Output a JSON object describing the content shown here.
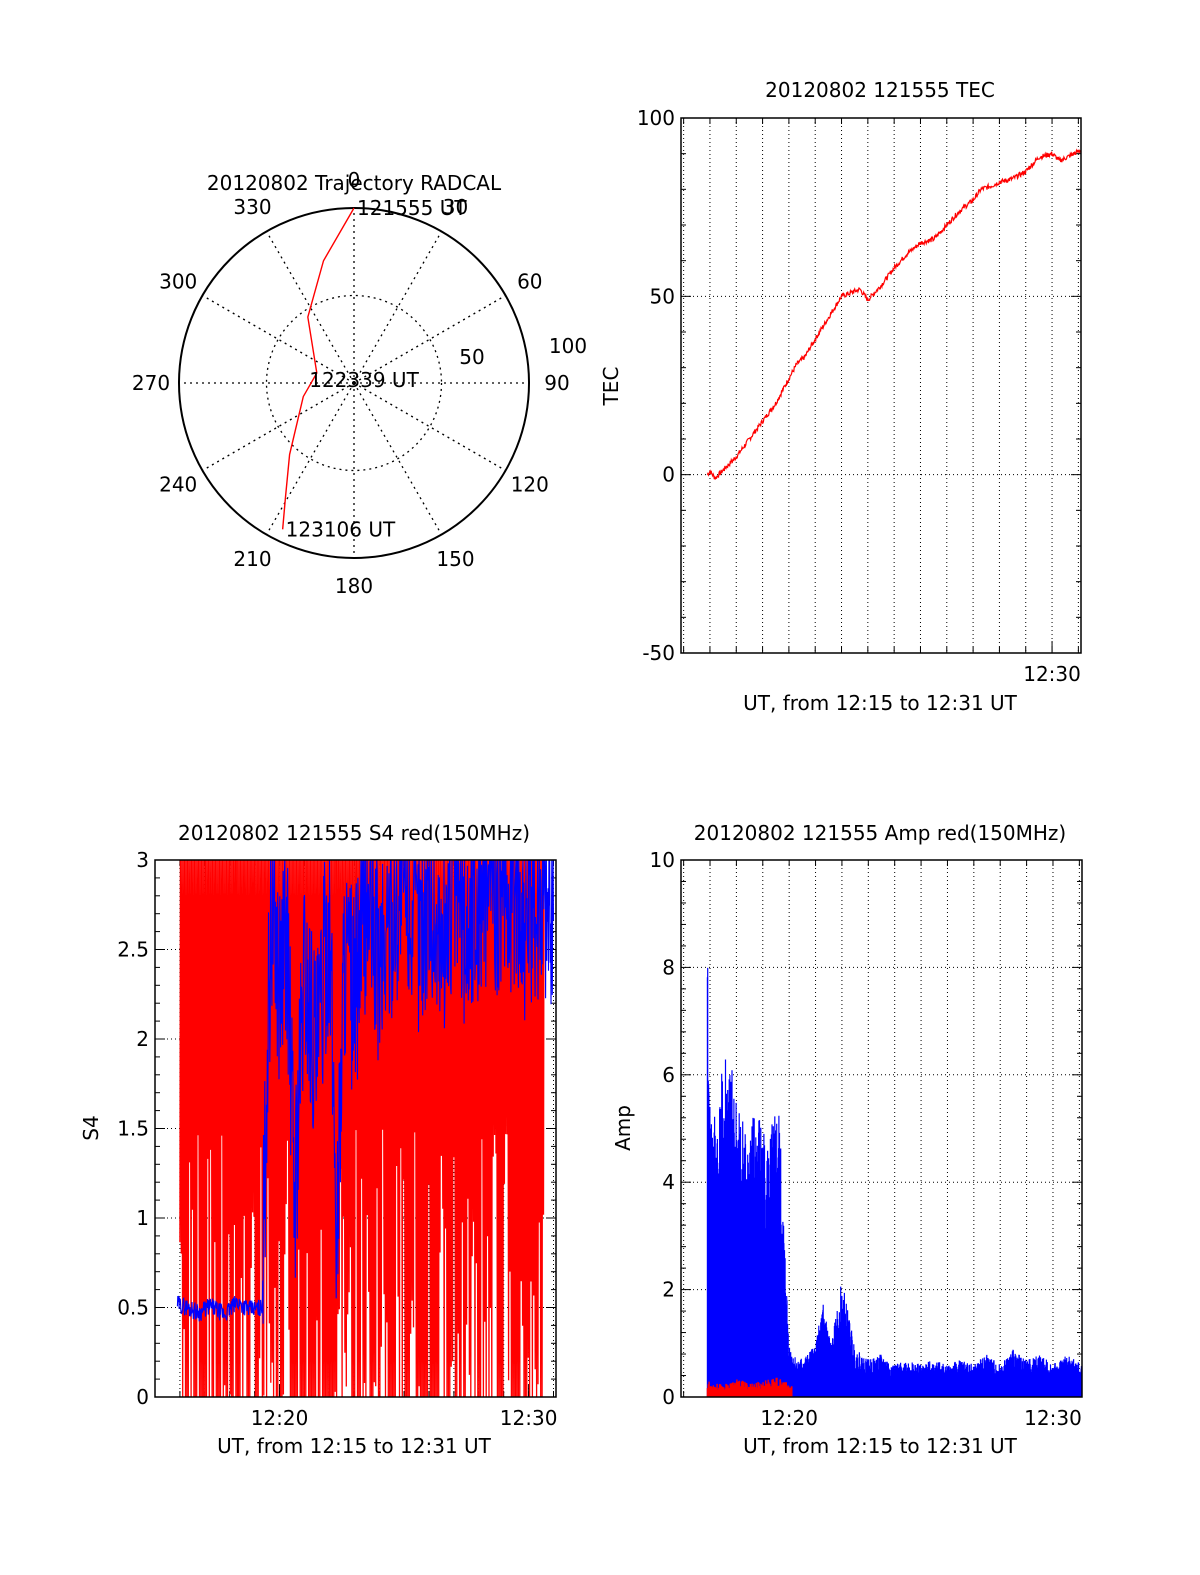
{
  "figure": {
    "colors": {
      "red": "#ff0000",
      "blue": "#0000ff",
      "axis": "#000000",
      "grid": "#000000"
    }
  },
  "chart_data": [
    {
      "type": "polar",
      "title": "20120802 Trajectory RADCAL",
      "angle_labels": [
        "0",
        "30",
        "60",
        "90",
        "120",
        "150",
        "180",
        "210",
        "240",
        "270",
        "300",
        "330"
      ],
      "radial_ticks": [
        "50",
        "100"
      ],
      "rlim": [
        0,
        100
      ],
      "grid": true,
      "series": [
        {
          "color": "#ff0000",
          "points": [
            {
              "azimuth": 0,
              "radius": 100,
              "label": "121555 UT"
            },
            {
              "azimuth": 346,
              "radius": 72
            },
            {
              "azimuth": 325,
              "radius": 46
            },
            {
              "azimuth": 285,
              "radius": 22
            },
            {
              "azimuth": 255,
              "radius": 30
            },
            {
              "azimuth": 222,
              "radius": 55
            },
            {
              "azimuth": 211,
              "radius": 76
            },
            {
              "azimuth": 206,
              "radius": 93
            }
          ],
          "annotations": [
            {
              "text": "121555 UT",
              "azimuth": 0,
              "radius": 100
            },
            {
              "text": "122339 UT",
              "azimuth": 270,
              "radius": 0
            },
            {
              "text": "123106 UT",
              "azimuth": 206,
              "radius": 93
            }
          ]
        }
      ]
    },
    {
      "type": "line",
      "title": "20120802 121555 TEC",
      "xlabel": "UT, from 12:15 to 12:31 UT",
      "ylabel": "TEC",
      "xlim": [
        735.9,
        751.1
      ],
      "ylim": [
        -50,
        100
      ],
      "x_tick_labels": [
        {
          "x": 750,
          "label": "12:30"
        }
      ],
      "y_tick_labels": [
        "-50",
        "0",
        "50",
        "100"
      ],
      "grid": true,
      "series": [
        {
          "color": "#ff0000",
          "x": [
            736.9,
            737.0,
            737.2,
            737.6,
            738.0,
            738.5,
            739.0,
            739.5,
            740.0,
            740.3,
            740.6,
            741.0,
            741.5,
            742.0,
            742.7,
            743.0,
            743.5,
            744.0,
            744.5,
            745.0,
            745.5,
            746.0,
            746.5,
            747.0,
            747.3,
            747.7,
            748.0,
            748.5,
            749.0,
            749.5,
            750.0,
            750.3,
            751.1
          ],
          "y": [
            0,
            1,
            -1,
            2,
            5,
            10,
            15,
            20,
            27,
            31,
            33,
            38,
            44,
            50,
            52,
            49,
            53,
            58,
            62,
            65,
            66,
            70,
            74,
            77,
            80,
            81,
            82,
            83,
            85,
            89,
            90,
            88,
            91
          ]
        }
      ]
    },
    {
      "type": "line",
      "title": "20120802 121555 S4 red(150MHz)",
      "xlabel": "UT, from 12:15 to 12:31 UT",
      "ylabel": "S4",
      "xlim": [
        735.0,
        751.1
      ],
      "ylim": [
        0,
        3
      ],
      "x_tick_labels": [
        {
          "x": 740,
          "label": "12:20"
        },
        {
          "x": 750,
          "label": "12:30"
        }
      ],
      "y_tick_labels": [
        "0",
        "0.5",
        "1",
        "1.5",
        "2",
        "2.5",
        "3"
      ],
      "grid": true,
      "series": [
        {
          "color": "#0000ff",
          "x": [
            735.9,
            736.3,
            736.8,
            737.2,
            737.8,
            738.3,
            738.8,
            739.3,
            739.5,
            739.7,
            740.0,
            740.3,
            740.6,
            741.0,
            741.5,
            742.0,
            742.3,
            742.6,
            743.0,
            743.5,
            744.0,
            744.5,
            745.0,
            745.5,
            746.0,
            746.5,
            747.0,
            747.5,
            748.0,
            748.5,
            749.0,
            749.5,
            750.0,
            750.5,
            751.0
          ],
          "y": [
            0.52,
            0.5,
            0.47,
            0.51,
            0.46,
            0.53,
            0.49,
            0.5,
            1.9,
            2.8,
            2.3,
            2.6,
            1.1,
            2.4,
            1.9,
            2.7,
            0.9,
            2.5,
            2.2,
            2.8,
            2.4,
            2.7,
            2.9,
            2.6,
            2.8,
            2.5,
            2.9,
            2.6,
            2.8,
            2.95,
            2.7,
            2.9,
            2.6,
            2.85,
            2.7
          ]
        },
        {
          "color": "#ff0000",
          "x": [
            736.0,
            736.6,
            737.0,
            737.5,
            737.9,
            738.2,
            738.6,
            739.0,
            739.4,
            739.8,
            740.2,
            740.6,
            741.0,
            741.4,
            741.8,
            742.2,
            742.6,
            743.0,
            743.4,
            743.8,
            744.2,
            744.6,
            745.0,
            745.4,
            745.8,
            746.2,
            746.6,
            747.0,
            747.4,
            747.8,
            748.2,
            748.6,
            749.0,
            749.4,
            749.8,
            750.2,
            750.6
          ],
          "y": [
            3,
            0,
            3,
            0,
            3,
            0,
            3,
            0,
            3,
            0,
            3,
            0,
            3,
            0,
            3,
            0,
            3,
            0,
            3,
            0,
            3,
            0,
            3,
            0,
            3,
            0,
            3,
            0,
            3,
            0,
            3,
            0,
            3,
            0,
            3,
            0,
            3
          ]
        }
      ]
    },
    {
      "type": "line",
      "title": "20120802 121555 Amp red(150MHz)",
      "xlabel": "UT, from 12:15 to 12:31 UT",
      "ylabel": "Amp",
      "xlim": [
        735.9,
        751.1
      ],
      "ylim": [
        0,
        10
      ],
      "x_tick_labels": [
        {
          "x": 740,
          "label": "12:20"
        },
        {
          "x": 750,
          "label": "12:30"
        }
      ],
      "y_tick_labels": [
        "0",
        "2",
        "4",
        "6",
        "8",
        "10"
      ],
      "grid": true,
      "series": [
        {
          "color": "#0000ff",
          "x": [
            736.9,
            737.0,
            737.3,
            737.6,
            738.0,
            738.4,
            738.8,
            739.2,
            739.6,
            740.0,
            740.3,
            740.7,
            741.0,
            741.3,
            741.6,
            742.0,
            742.5,
            743.0,
            743.5,
            744.0,
            744.5,
            745.0,
            745.5,
            746.0,
            746.5,
            747.0,
            747.5,
            748.0,
            748.5,
            749.0,
            749.5,
            750.0,
            750.5,
            751.1
          ],
          "y": [
            8.4,
            5.5,
            5.4,
            6.7,
            5.7,
            5.1,
            5.5,
            4.8,
            5.6,
            1.0,
            0.7,
            0.8,
            1.0,
            1.8,
            1.0,
            2.2,
            0.9,
            0.7,
            0.8,
            0.6,
            0.7,
            0.6,
            0.7,
            0.6,
            0.7,
            0.6,
            0.8,
            0.6,
            0.9,
            0.7,
            0.8,
            0.6,
            0.8,
            0.6
          ]
        },
        {
          "color": "#ff0000",
          "x": [
            736.9,
            737.5,
            738.0,
            738.5,
            739.0,
            739.5,
            740.1
          ],
          "y": [
            0.2,
            0.15,
            0.22,
            0.18,
            0.2,
            0.25,
            0.15
          ]
        }
      ]
    }
  ]
}
